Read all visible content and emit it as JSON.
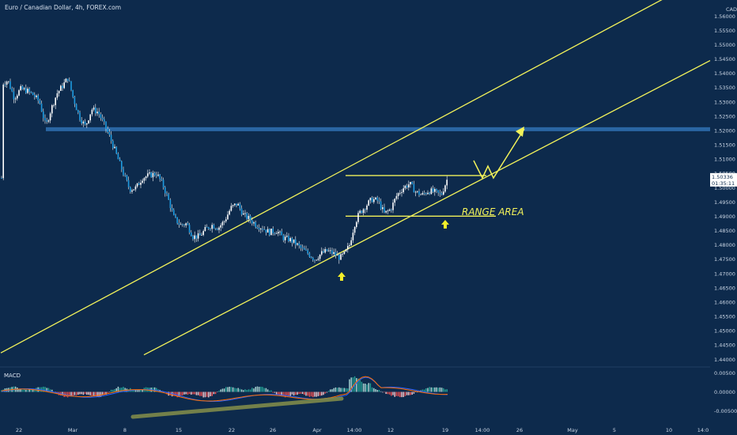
{
  "chart_data": {
    "type": "candlestick",
    "title": "Euro / Canadian Dollar, 4h, FOREX.com",
    "currency": "CAD",
    "ylim": [
      1.4325,
      1.5675
    ],
    "y_ticks": [
      "1.56000",
      "1.55500",
      "1.55000",
      "1.54500",
      "1.54000",
      "1.53500",
      "1.53000",
      "1.52500",
      "1.52000",
      "1.51500",
      "1.51000",
      "1.50500",
      "1.50000",
      "1.49500",
      "1.49000",
      "1.48500",
      "1.48000",
      "1.47500",
      "1.47000",
      "1.46500",
      "1.46000",
      "1.45500",
      "1.45000",
      "1.44500",
      "1.44000"
    ],
    "x_ticks": [
      "22",
      "Mar",
      "8",
      "15",
      "22",
      "26",
      "Apr",
      "14:00",
      "12",
      "19",
      "14:00",
      "26",
      "May",
      "5",
      "10",
      "14:0"
    ],
    "current_price": "1.50336",
    "countdown": "01:35:11",
    "candle_color": "#ffffff",
    "levels": [
      {
        "kind": "band",
        "price": 1.5205,
        "color": "#2e6dad"
      }
    ],
    "range": {
      "label": "RANGE  AREA",
      "top": 1.5043,
      "bottom": 1.4901
    },
    "channel": {
      "color": "#f2f25a",
      "upper": [
        [
          1,
          1.4423
        ],
        [
          850,
          1.5677
        ]
      ],
      "lower": [
        [
          182,
          1.4416
        ],
        [
          898,
          1.5445
        ]
      ]
    },
    "macd": {
      "label": "MACD",
      "ylim": [
        -0.0065,
        0.0065
      ],
      "y_ticks": [
        "0.00500",
        "0.00000",
        "-0.00500"
      ],
      "macd_color": "#2962ff",
      "signal_color": "#ff6d00",
      "divergence_color": "#7f8a4a"
    }
  }
}
